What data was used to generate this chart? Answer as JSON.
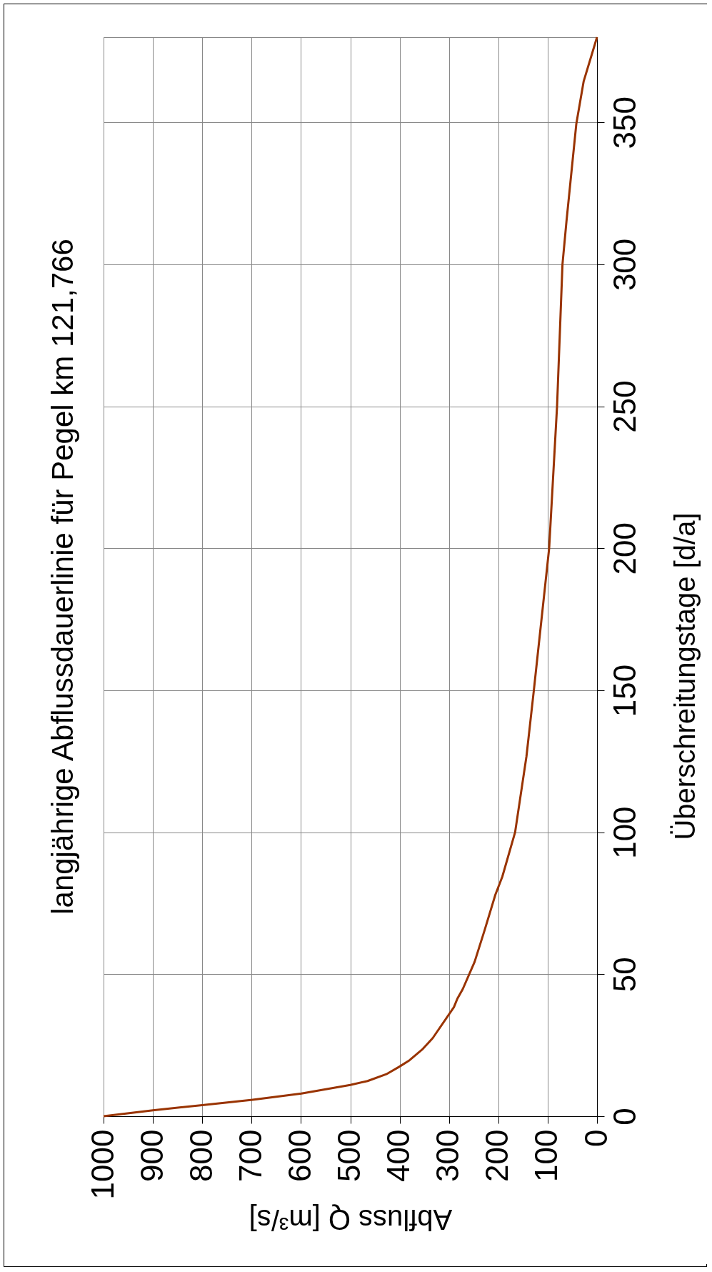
{
  "chart_data": {
    "type": "line",
    "title": "langjährige Abflussdauerlinie für Pegel km 121,766",
    "xlabel": "Abfluss Q [m³/s]",
    "ylabel": "Überschreitungstage [d/a]",
    "x": [
      1000,
      900,
      800,
      698,
      599,
      500,
      465,
      427,
      401,
      380,
      353,
      333,
      290,
      283,
      272,
      248,
      228,
      206,
      192,
      166,
      143,
      128,
      97,
      81,
      70,
      62,
      42,
      27,
      0
    ],
    "series": [
      {
        "color": "#993300",
        "values": [
          0,
          2.1,
          3.9,
          5.8,
          8.0,
          11,
          12.4,
          14.8,
          17.4,
          19.7,
          23.7,
          27.5,
          38.4,
          41.4,
          44.8,
          54.4,
          65.4,
          78,
          84.3,
          100,
          126.7,
          150,
          200,
          250,
          300,
          315,
          349.4,
          364.5,
          380
        ]
      }
    ],
    "xlim": [
      1000,
      0
    ],
    "xticks": [
      1000,
      900,
      800,
      700,
      600,
      500,
      400,
      300,
      200,
      100,
      0
    ],
    "ylim": [
      0,
      380
    ],
    "yticks": [
      0,
      50,
      100,
      150,
      200,
      250,
      300,
      350
    ],
    "grid": true,
    "line_style": "solid",
    "marker": "none"
  }
}
